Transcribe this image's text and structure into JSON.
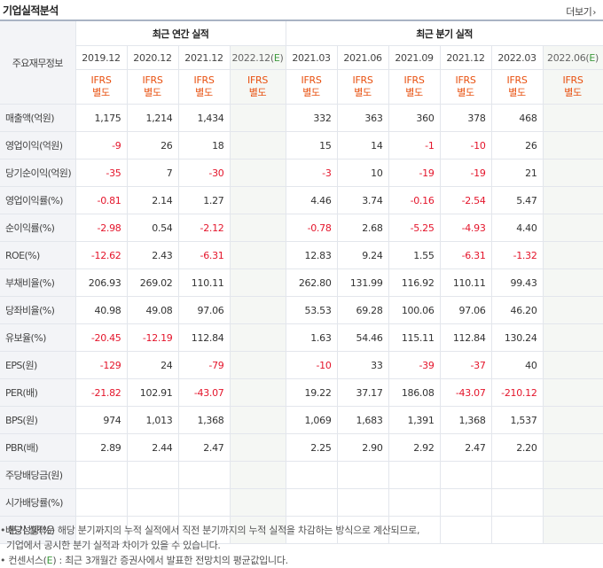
{
  "header": {
    "title": "기업실적분석",
    "more_label": "더보기",
    "more_icon": "chevron-right-icon"
  },
  "table": {
    "label_header": "주요재무정보",
    "annual_group": "최근 연간 실적",
    "quarter_group": "최근 분기 실적",
    "periods": [
      "2019.12",
      "2020.12",
      "2021.12",
      "2022.12(E)",
      "2021.03",
      "2021.06",
      "2021.09",
      "2021.12",
      "2022.03",
      "2022.06(E)"
    ],
    "standard_top": "IFRS",
    "standard_bottom": "별도",
    "rows": [
      {
        "label": "매출액(억원)",
        "values": [
          "1,175",
          "1,214",
          "1,434",
          "",
          "332",
          "363",
          "360",
          "378",
          "468",
          ""
        ]
      },
      {
        "label": "영업이익(억원)",
        "values": [
          "-9",
          "26",
          "18",
          "",
          "15",
          "14",
          "-1",
          "-10",
          "26",
          ""
        ]
      },
      {
        "label": "당기순이익(억원)",
        "values": [
          "-35",
          "7",
          "-30",
          "",
          "-3",
          "10",
          "-19",
          "-19",
          "21",
          ""
        ]
      },
      {
        "label": "영업이익률(%)",
        "values": [
          "-0.81",
          "2.14",
          "1.27",
          "",
          "4.46",
          "3.74",
          "-0.16",
          "-2.54",
          "5.47",
          ""
        ]
      },
      {
        "label": "순이익률(%)",
        "values": [
          "-2.98",
          "0.54",
          "-2.12",
          "",
          "-0.78",
          "2.68",
          "-5.25",
          "-4.93",
          "4.40",
          ""
        ]
      },
      {
        "label": "ROE(%)",
        "values": [
          "-12.62",
          "2.43",
          "-6.31",
          "",
          "12.83",
          "9.24",
          "1.55",
          "-6.31",
          "-1.32",
          ""
        ]
      },
      {
        "label": "부채비율(%)",
        "values": [
          "206.93",
          "269.02",
          "110.11",
          "",
          "262.80",
          "131.99",
          "116.92",
          "110.11",
          "99.43",
          ""
        ]
      },
      {
        "label": "당좌비율(%)",
        "values": [
          "40.98",
          "49.08",
          "97.06",
          "",
          "53.53",
          "69.28",
          "100.06",
          "97.06",
          "46.20",
          ""
        ]
      },
      {
        "label": "유보율(%)",
        "values": [
          "-20.45",
          "-12.19",
          "112.84",
          "",
          "1.63",
          "54.46",
          "115.11",
          "112.84",
          "130.24",
          ""
        ]
      },
      {
        "label": "EPS(원)",
        "values": [
          "-129",
          "24",
          "-79",
          "",
          "-10",
          "33",
          "-39",
          "-37",
          "40",
          ""
        ]
      },
      {
        "label": "PER(배)",
        "values": [
          "-21.82",
          "102.91",
          "-43.07",
          "",
          "19.22",
          "37.17",
          "186.08",
          "-43.07",
          "-210.12",
          ""
        ]
      },
      {
        "label": "BPS(원)",
        "values": [
          "974",
          "1,013",
          "1,368",
          "",
          "1,069",
          "1,683",
          "1,391",
          "1,368",
          "1,537",
          ""
        ]
      },
      {
        "label": "PBR(배)",
        "values": [
          "2.89",
          "2.44",
          "2.47",
          "",
          "2.25",
          "2.90",
          "2.92",
          "2.47",
          "2.20",
          ""
        ]
      },
      {
        "label": "주당배당금(원)",
        "values": [
          "",
          "",
          "",
          "",
          "",
          "",
          "",
          "",
          "",
          ""
        ]
      },
      {
        "label": "시가배당률(%)",
        "values": [
          "",
          "",
          "",
          "",
          "",
          "",
          "",
          "",
          "",
          ""
        ]
      },
      {
        "label": "배당성향(%)",
        "values": [
          "-",
          "-",
          "",
          "",
          "",
          "",
          "",
          "",
          "",
          ""
        ]
      }
    ]
  },
  "notes": {
    "line1": "• 분기 실적은 해당 분기까지의 누적 실적에서 직전 분기까지의 누적 실적을 차감하는 방식으로 계산되므로,",
    "line2": "기업에서 공시한 분기 실적과 차이가 있을 수 있습니다.",
    "line3_prefix": "• 컨센서스(",
    "line3_e": "E",
    "line3_suffix": ") : 최근 3개월간 증권사에서 발표한 전망치의 평균값입니다."
  },
  "colors": {
    "negative": "#e4152b",
    "ifrs": "#e8500f",
    "estimate": "#3c9a3c",
    "label_bg": "#f3f4f7"
  }
}
